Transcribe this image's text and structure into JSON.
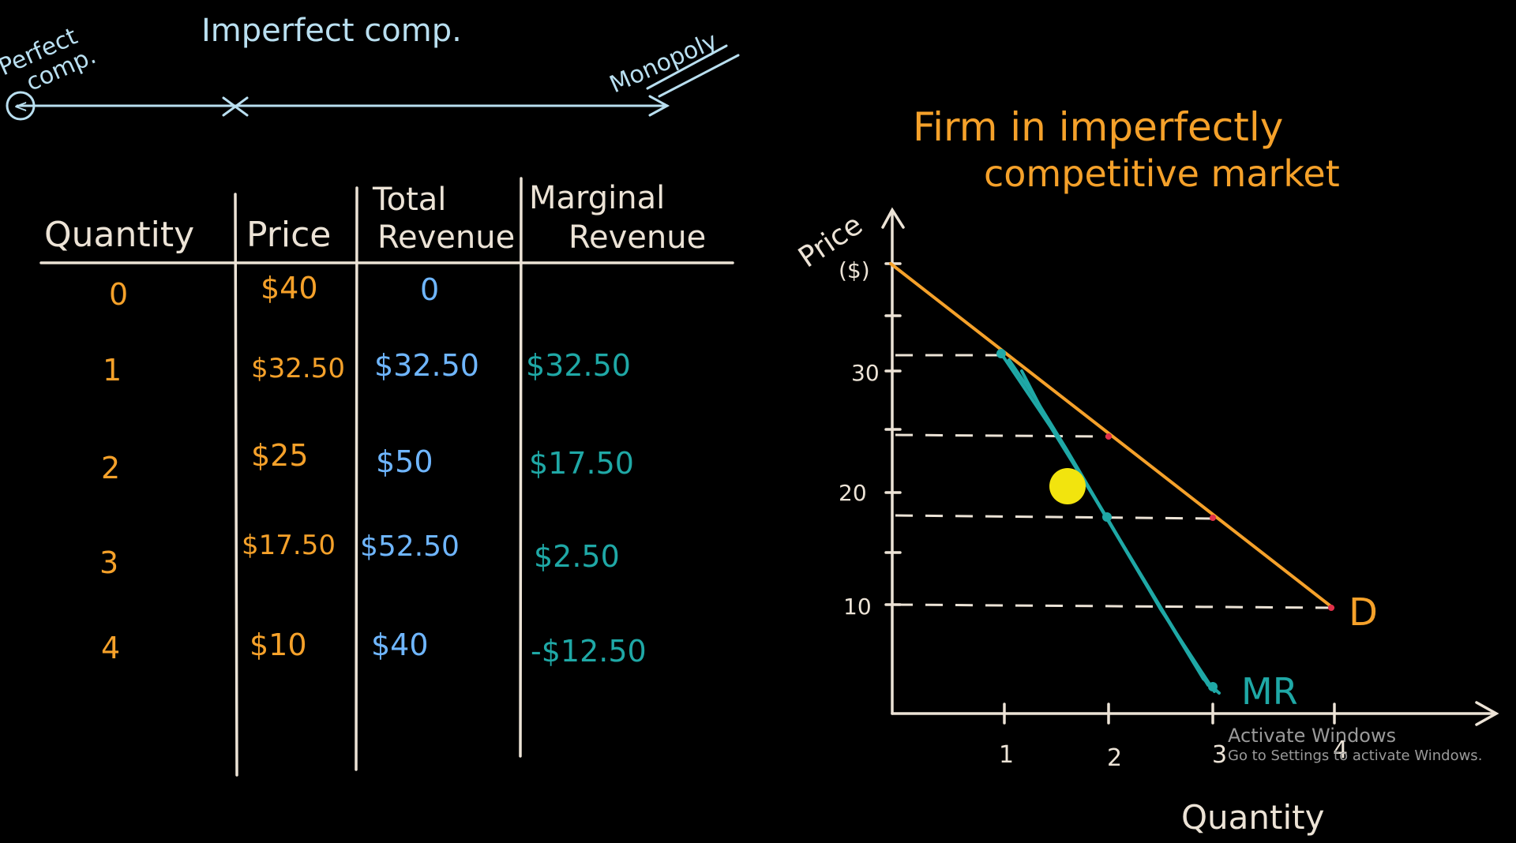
{
  "spectrum": {
    "left_label_line1": "Perfect",
    "left_label_line2": "comp.",
    "middle_label": "Imperfect comp.",
    "right_label": "Monopoly",
    "left_marker": "<",
    "mid_marker": "x"
  },
  "table": {
    "headers": {
      "quantity": "Quantity",
      "price": "Price",
      "total_revenue_line1": "Total",
      "total_revenue_line2": "Revenue",
      "marginal_revenue_line1": "Marginal",
      "marginal_revenue_line2": "Revenue"
    },
    "rows": [
      {
        "quantity": "0",
        "price": "$40",
        "total_revenue": "0",
        "marginal_revenue": ""
      },
      {
        "quantity": "1",
        "price": "$32.50",
        "total_revenue": "$32.50",
        "marginal_revenue": "$32.50"
      },
      {
        "quantity": "2",
        "price": "$25",
        "total_revenue": "$50",
        "marginal_revenue": "$17.50"
      },
      {
        "quantity": "3",
        "price": "$17.50",
        "total_revenue": "$52.50",
        "marginal_revenue": "$2.50"
      },
      {
        "quantity": "4",
        "price": "$10",
        "total_revenue": "$40",
        "marginal_revenue": "-$12.50"
      }
    ]
  },
  "graph": {
    "title_line1": "Firm in imperfectly",
    "title_line2": "competitive market",
    "ylabel_line1": "Price",
    "ylabel_line2": "($)",
    "xlabel": "Quantity",
    "y_ticks": [
      "10",
      "20",
      "30"
    ],
    "x_ticks": [
      "1",
      "2",
      "3",
      "4"
    ],
    "demand_label": "D",
    "mr_label": "MR"
  },
  "colors": {
    "background": "#000000",
    "chalk_white": "#ece3d6",
    "spectrum_blue": "#b9dff0",
    "orange": "#f5a12a",
    "blue": "#6fb6ff",
    "teal": "#1fa8a6",
    "cursor_yellow": "#f2e40e",
    "red_dot": "#e0304a"
  },
  "watermark": {
    "title": "Activate Windows",
    "subtitle": "Go to Settings to activate Windows."
  }
}
